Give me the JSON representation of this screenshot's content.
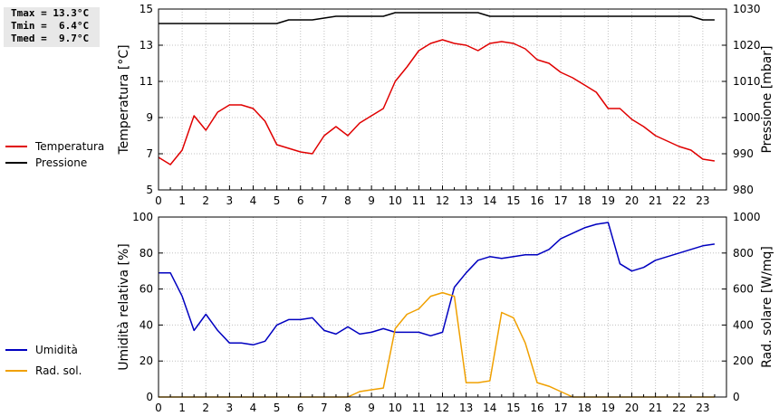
{
  "stats": {
    "tmax": "Tmax = 13.3°C",
    "tmin": "Tmin =  6.4°C",
    "tmed": "Tmed =  9.7°C"
  },
  "chart_data": [
    {
      "type": "line",
      "xlabel": "",
      "ylabel": "Temperatura [°C]",
      "y2label": "Pressione [mbar]",
      "xlim": [
        0,
        24
      ],
      "ylim": [
        5,
        15
      ],
      "y2lim": [
        980,
        1030
      ],
      "xticks": [
        0,
        1,
        2,
        3,
        4,
        5,
        6,
        7,
        8,
        9,
        10,
        11,
        12,
        13,
        14,
        15,
        16,
        17,
        18,
        19,
        20,
        21,
        22,
        23
      ],
      "yticks": [
        5,
        7,
        9,
        11,
        13,
        15
      ],
      "y2ticks": [
        980,
        990,
        1000,
        1010,
        1020,
        1030
      ],
      "grid": true,
      "legend_position": "left",
      "series": [
        {
          "name": "Temperatura",
          "axis": "left",
          "color": "#e00000",
          "x": [
            0,
            0.5,
            1,
            1.5,
            2,
            2.5,
            3,
            3.5,
            4,
            4.5,
            5,
            5.5,
            6,
            6.5,
            7,
            7.5,
            8,
            8.5,
            9,
            9.5,
            10,
            10.5,
            11,
            11.5,
            12,
            12.5,
            13,
            13.5,
            14,
            14.5,
            15,
            15.5,
            16,
            16.5,
            17,
            17.5,
            18,
            18.5,
            19,
            19.5,
            20,
            20.5,
            21,
            21.5,
            22,
            22.5,
            23,
            23.5
          ],
          "y": [
            6.8,
            6.4,
            7.2,
            9.1,
            8.3,
            9.3,
            9.7,
            9.7,
            9.5,
            8.8,
            7.5,
            7.3,
            7.1,
            7.0,
            8.0,
            8.5,
            8.0,
            8.7,
            9.1,
            9.5,
            11.0,
            11.8,
            12.7,
            13.1,
            13.3,
            13.1,
            13.0,
            12.7,
            13.1,
            13.2,
            13.1,
            12.8,
            12.2,
            12.0,
            11.5,
            11.2,
            10.8,
            10.4,
            9.5,
            9.5,
            8.9,
            8.5,
            8.0,
            7.7,
            7.4,
            7.2,
            6.7,
            6.6
          ]
        },
        {
          "name": "Pressione",
          "axis": "right",
          "color": "#000000",
          "x": [
            0,
            5,
            5.5,
            6.5,
            7.5,
            9.5,
            10,
            13.5,
            14,
            22.5,
            23,
            23.5
          ],
          "y": [
            1026,
            1026,
            1027,
            1027,
            1028,
            1028,
            1029,
            1029,
            1028,
            1028,
            1027,
            1027
          ]
        }
      ]
    },
    {
      "type": "line",
      "xlabel": "",
      "ylabel": "Umidità relativa [%]",
      "y2label": "Rad. solare [W/mq]",
      "xlim": [
        0,
        24
      ],
      "ylim": [
        0,
        100
      ],
      "y2lim": [
        0,
        1000
      ],
      "xticks": [
        0,
        1,
        2,
        3,
        4,
        5,
        6,
        7,
        8,
        9,
        10,
        11,
        12,
        13,
        14,
        15,
        16,
        17,
        18,
        19,
        20,
        21,
        22,
        23
      ],
      "yticks": [
        0,
        20,
        40,
        60,
        80,
        100
      ],
      "y2ticks": [
        0,
        200,
        400,
        600,
        800,
        1000
      ],
      "grid": true,
      "legend_position": "left",
      "series": [
        {
          "name": "Umidità",
          "axis": "left",
          "color": "#0000c0",
          "x": [
            0,
            0.5,
            1,
            1.5,
            2,
            2.5,
            3,
            3.5,
            4,
            4.5,
            5,
            5.5,
            6,
            6.5,
            7,
            7.5,
            8,
            8.5,
            9,
            9.5,
            10,
            10.5,
            11,
            11.5,
            12,
            12.5,
            13,
            13.5,
            14,
            14.5,
            15,
            15.5,
            16,
            16.5,
            17,
            17.5,
            18,
            18.5,
            19,
            19.5,
            20,
            20.5,
            21,
            21.5,
            22,
            22.5,
            23,
            23.5
          ],
          "y": [
            69,
            69,
            56,
            37,
            46,
            37,
            30,
            30,
            29,
            31,
            40,
            43,
            43,
            44,
            37,
            35,
            39,
            35,
            36,
            38,
            36,
            36,
            36,
            34,
            36,
            61,
            69,
            76,
            78,
            77,
            78,
            79,
            79,
            82,
            88,
            91,
            94,
            96,
            97,
            74,
            70,
            72,
            76,
            78,
            80,
            82,
            84,
            85
          ]
        },
        {
          "name": "Rad. sol.",
          "axis": "right",
          "color": "#f0a000",
          "x": [
            0,
            8,
            8.5,
            9,
            9.5,
            10,
            10.5,
            11,
            11.5,
            12,
            12.5,
            13,
            13.5,
            14,
            14.5,
            15,
            15.5,
            16,
            16.5,
            17,
            17.5,
            18,
            23.5
          ],
          "y": [
            0,
            0,
            30,
            40,
            50,
            380,
            460,
            490,
            560,
            580,
            560,
            80,
            80,
            90,
            470,
            440,
            300,
            80,
            60,
            30,
            0,
            0,
            0
          ]
        }
      ]
    }
  ]
}
